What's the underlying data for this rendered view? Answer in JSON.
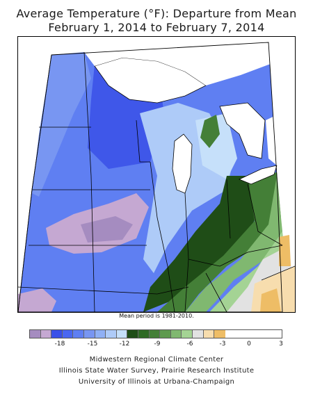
{
  "header": {
    "title_line1": "Average Temperature (°F): Departure from Mean",
    "title_line2": "February 1, 2014 to February 7, 2014"
  },
  "map": {
    "mean_period_note": "Mean period is 1981-2010."
  },
  "legend": {
    "colors": [
      "#a58cc0",
      "#c5a8d2",
      "#3a50e8",
      "#4a67f0",
      "#5f7ff2",
      "#7896f2",
      "#8fb0f5",
      "#aecbf8",
      "#c6e0fa",
      "#1f4d17",
      "#2f6a25",
      "#447f37",
      "#5e9a4e",
      "#80b870",
      "#a4d394",
      "#e2e2e2",
      "#f7ddae",
      "#eebd66"
    ],
    "tick_labels": [
      "-18",
      "-15",
      "-12",
      "-9",
      "-6",
      "-3",
      "0",
      "3"
    ]
  },
  "credits": {
    "line1": "Midwestern Regional Climate Center",
    "line2": "Illinois State Water Survey, Prairie Research Institute",
    "line3": "University of Illinois at Urbana-Champaign"
  }
}
